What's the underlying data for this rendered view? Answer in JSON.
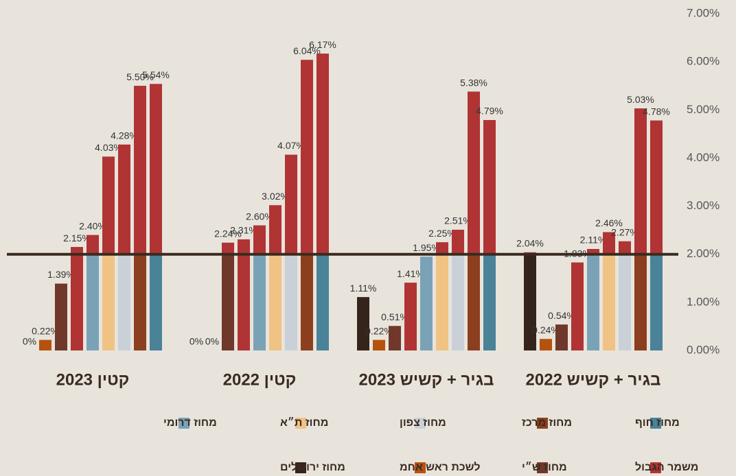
{
  "chart_data": {
    "type": "bar",
    "categories": [
      "קטין 2023",
      "קטין 2022",
      "בגיר + קשיש 2023",
      "בגיר + קשיש 2022"
    ],
    "series": [
      {
        "name": "מחוז ירושלים",
        "color": "#35241c",
        "values": [
          0,
          0,
          1.11,
          2.04
        ],
        "value_labels": [
          "0%",
          "0%",
          "1.11%",
          "2.04%"
        ]
      },
      {
        "name": "לשכת ראש אחמ",
        "color": "#b5520e",
        "values": [
          0.22,
          0,
          0.22,
          0.24
        ],
        "value_labels": [
          "0.22%",
          "0%",
          "0.22%",
          "0.24%"
        ]
      },
      {
        "name": "מחוז ש״י",
        "color": "#70382a",
        "values": [
          1.39,
          2.24,
          0.51,
          0.54
        ],
        "value_labels": [
          "1.39%",
          "2.24%",
          "0.51%",
          "0.54%"
        ]
      },
      {
        "name": "משמר הגבול",
        "color": "#b03434",
        "values": [
          2.15,
          2.31,
          1.41,
          1.83
        ],
        "value_labels": [
          "2.15%",
          "2.31%",
          "1.41%",
          "1.83%"
        ]
      },
      {
        "name": "מחוז דרומי",
        "color": "#7aa2b6",
        "values": [
          2.4,
          2.6,
          1.95,
          2.11
        ],
        "value_labels": [
          "2.40%",
          "2.60%",
          "1.95%",
          "2.11%"
        ]
      },
      {
        "name": "מחוז ת״א",
        "color": "#f0c283",
        "values": [
          4.03,
          3.02,
          2.25,
          2.46
        ],
        "value_labels": [
          "4.03%",
          "3.02%",
          "2.25%",
          "2.46%"
        ]
      },
      {
        "name": "מחוז צפון",
        "color": "#c9d0d8",
        "values": [
          4.28,
          4.07,
          2.51,
          2.27
        ],
        "value_labels": [
          "4.28%",
          "4.07%",
          "2.51%",
          "2.27%"
        ]
      },
      {
        "name": "מחוז מרכז",
        "color": "#8c3f1f",
        "values": [
          5.5,
          6.04,
          5.38,
          5.03
        ],
        "value_labels": [
          "5.50%",
          "6.04%",
          "5.38%",
          "5.03%"
        ]
      },
      {
        "name": "מחוז חוף",
        "color": "#4a8298",
        "values": [
          5.54,
          6.17,
          4.79,
          4.78
        ],
        "value_labels": [
          "5.54%",
          "6.17%",
          "4.79%",
          "4.78%"
        ]
      }
    ],
    "ylim": [
      0,
      7
    ],
    "yticks": [
      {
        "value": 0,
        "label": "0.00%"
      },
      {
        "value": 1,
        "label": "1.00%"
      },
      {
        "value": 2,
        "label": "2.00%"
      },
      {
        "value": 3,
        "label": "3.00%"
      },
      {
        "value": 4,
        "label": "4.00%"
      },
      {
        "value": 5,
        "label": "5.00%"
      },
      {
        "value": 6,
        "label": "6.00%"
      },
      {
        "value": 7,
        "label": "7.00%"
      }
    ],
    "reference_line": 2,
    "reference_color": "#3a2a20",
    "highlight_color": "#b03434",
    "grid": false
  }
}
